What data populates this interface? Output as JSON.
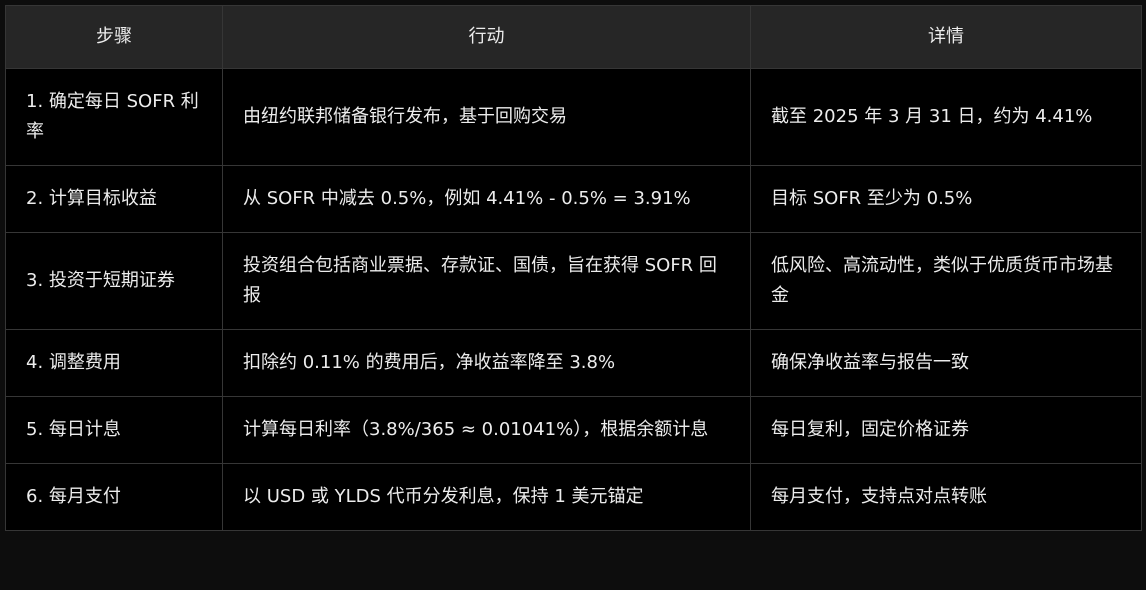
{
  "table": {
    "headers": [
      "步骤",
      "行动",
      "详情"
    ],
    "rows": [
      [
        "1. 确定每日 SOFR 利率",
        "由纽约联邦储备银行发布，基于回购交易",
        "截至 2025 年 3 月 31 日，约为 4.41%"
      ],
      [
        "2. 计算目标收益",
        "从 SOFR 中减去 0.5%，例如 4.41% - 0.5% = 3.91%",
        "目标 SOFR 至少为 0.5%"
      ],
      [
        "3. 投资于短期证券",
        "投资组合包括商业票据、存款证、国债，旨在获得 SOFR 回报",
        "低风险、高流动性，类似于优质货币市场基金"
      ],
      [
        "4. 调整费用",
        "扣除约 0.11% 的费用后，净收益率降至 3.8%",
        "确保净收益率与报告一致"
      ],
      [
        "5. 每日计息",
        "计算每日利率（3.8%/365 ≈ 0.01041%），根据余额计息",
        "每日复利，固定价格证券"
      ],
      [
        "6. 每月支付",
        "以 USD 或 YLDS 代币分发利息，保持 1 美元锚定",
        "每月支付，支持点对点转账"
      ]
    ]
  }
}
